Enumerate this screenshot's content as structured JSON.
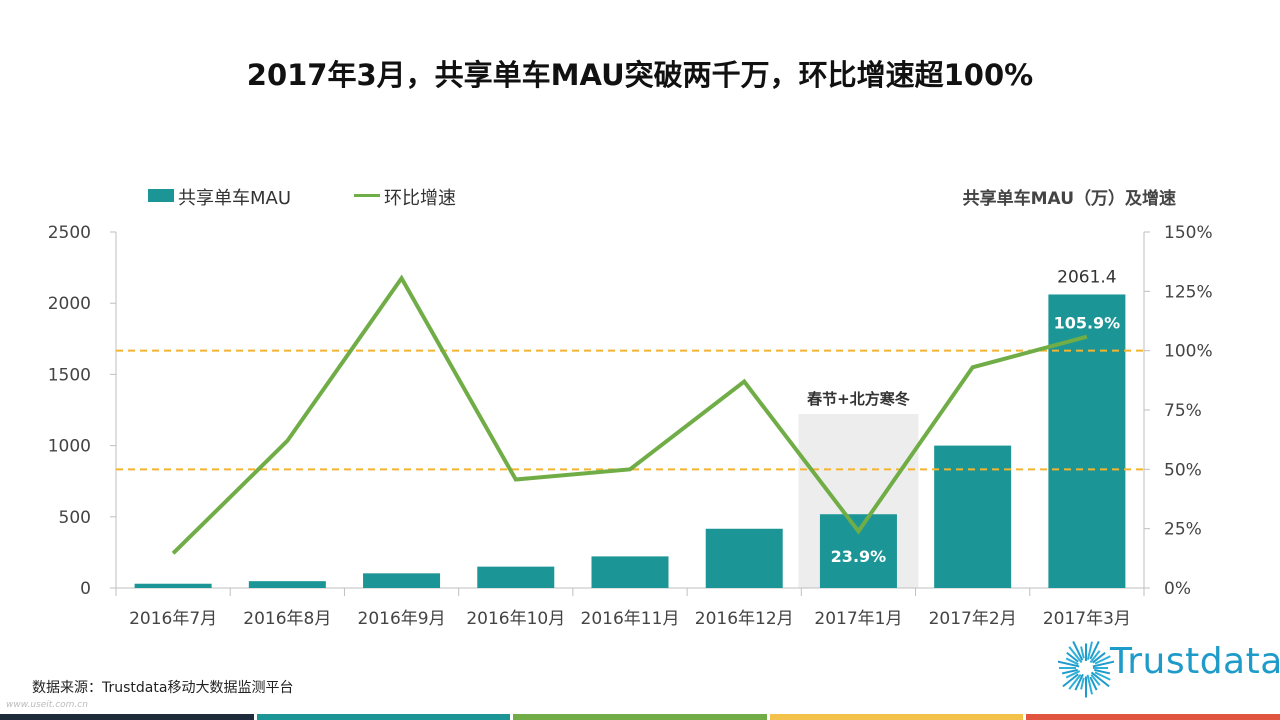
{
  "header": {
    "title": "2017年3月，共享单车MAU突破两千万，环比增速超100%"
  },
  "legend": {
    "bar_label": "共享单车MAU",
    "line_label": "环比增速"
  },
  "chart_subtitle": "共享单车MAU（万）及增速",
  "colors": {
    "bar": "#1b9595",
    "line": "#70ad47",
    "reference_line": "#f2b431",
    "shade": "#ededed",
    "axis": "#bfbfbf",
    "footer": [
      "#1d2b3a",
      "#1b9595",
      "#70ad47",
      "#f2c24a",
      "#e1543f"
    ]
  },
  "chart_data": {
    "type": "bar",
    "title": "共享单车MAU（万）及增速",
    "categories": [
      "2016年7月",
      "2016年8月",
      "2016年9月",
      "2016年10月",
      "2016年11月",
      "2016年12月",
      "2017年1月",
      "2017年2月",
      "2017年3月"
    ],
    "series": [
      {
        "name": "共享单车MAU",
        "type": "bar",
        "axis": "left",
        "values": [
          30,
          48,
          103,
          150,
          222,
          416,
          518,
          1000,
          2061.4
        ]
      },
      {
        "name": "环比增速",
        "type": "line",
        "axis": "right",
        "values": [
          0.146,
          0.62,
          1.305,
          0.457,
          0.5,
          0.87,
          0.239,
          0.93,
          1.059
        ]
      }
    ],
    "y_left": {
      "min": 0,
      "max": 2500,
      "ticks": [
        "0",
        "500",
        "1000",
        "1500",
        "2000",
        "2500"
      ]
    },
    "y_right": {
      "min": 0,
      "max": 1.5,
      "ticks": [
        "0%",
        "25%",
        "50%",
        "75%",
        "100%",
        "125%",
        "150%"
      ]
    },
    "reference_lines_right": [
      1.0,
      0.5
    ],
    "data_labels": [
      {
        "category_index": 8,
        "series": "共享单车MAU",
        "text": "2061.4"
      },
      {
        "category_index": 6,
        "series": "环比增速",
        "text": "23.9%"
      },
      {
        "category_index": 8,
        "series": "环比增速",
        "text": "105.9%"
      }
    ],
    "annotation": {
      "category_index": 6,
      "text": "春节+北方寒冬"
    },
    "grid": false,
    "legend_position": "top-left"
  },
  "footer": {
    "source": "数据来源：Trustdata移动大数据监测平台",
    "watermark": "www.useit.com.cn",
    "logo_text": "Trustdata"
  }
}
